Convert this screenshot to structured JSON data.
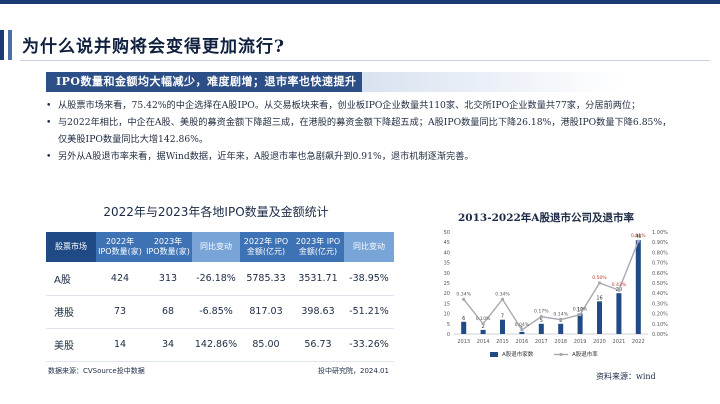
{
  "header": {
    "title": "为什么说并购将会变得更加流行?"
  },
  "banner": {
    "text": "IPO数量和金额均大幅减少，难度剧增；退市率也快速提升"
  },
  "bullets": [
    "从股票市场来看，75.42%的中企选择在A股IPO。从交易板块来看，创业板IPO企业数量共110家、北交所IPO企业数量共77家，分居前两位；",
    "与2022年相比，中企在A股、美股的募资金额下降超三成，在港股的募资金额下降超五成；A股IPO数量同比下降26.18%，港股IPO数量下降6.85%，仅美股IPO数量同比大增142.86%。",
    "另外从A股退市率来看，据Wind数据，近年来，A股退市率也急剧飙升到0.91%，退市机制逐渐完善。"
  ],
  "table": {
    "title": "2022年与2023年各地IPO数量及金额统计",
    "headers": [
      "股票市场",
      "2022年 IPO数量(家)",
      "2023年 IPO数量(家)",
      "同比变动",
      "2022年 IPO金额(亿元)",
      "2023年 IPO金额(亿元)",
      "同比变动"
    ],
    "rows": [
      [
        "A股",
        "424",
        "313",
        "-26.18%",
        "5785.33",
        "3531.71",
        "-38.95%"
      ],
      [
        "港股",
        "73",
        "68",
        "-6.85%",
        "817.03",
        "398.63",
        "-51.21%"
      ],
      [
        "美股",
        "14",
        "34",
        "142.86%",
        "85.00",
        "56.73",
        "-33.26%"
      ]
    ],
    "source_left": "数据来源：CVSource投中数据",
    "source_right": "投中研究院，2024.01"
  },
  "chart": {
    "title": "2013-2022年A股退市公司及退市率",
    "source": "资料来源：wind",
    "colors": {
      "bar": "#1f4a85",
      "line": "#a8a8b0",
      "label_red": "#c0392b"
    }
  },
  "chart_data": {
    "type": "bar",
    "title": "2013-2022年A股退市公司及退市率",
    "categories": [
      "2013",
      "2014",
      "2015",
      "2016",
      "2017",
      "2018",
      "2019",
      "2020",
      "2021",
      "2022"
    ],
    "series": [
      {
        "name": "A股退市家数",
        "type": "bar",
        "axis": "left",
        "values": [
          6,
          2,
          7,
          1,
          5,
          5,
          10,
          16,
          20,
          46
        ]
      },
      {
        "name": "A股退市率",
        "type": "line",
        "axis": "right",
        "values": [
          0.34,
          0.1,
          0.34,
          0.04,
          0.17,
          0.14,
          0.19,
          0.5,
          0.43,
          0.91
        ]
      }
    ],
    "point_labels": [
      "0.34%",
      "0.10%",
      "0.34%",
      "0.04%",
      "0.17%",
      "0.14%",
      "0.19%",
      "0.50%",
      "0.43%",
      "0.91%"
    ],
    "y_left": {
      "ticks": [
        0,
        5,
        10,
        15,
        20,
        25,
        30,
        35,
        40,
        45,
        50
      ],
      "ylim": [
        0,
        50
      ]
    },
    "y_right": {
      "ticks": [
        "0.00%",
        "0.10%",
        "0.20%",
        "0.30%",
        "0.40%",
        "0.50%",
        "0.60%",
        "0.70%",
        "0.80%",
        "0.90%",
        "1.00%"
      ],
      "ylim": [
        0,
        1.0
      ]
    },
    "legend": [
      "A股退市家数",
      "A股退市率"
    ],
    "legend_position": "bottom",
    "grid": false
  }
}
